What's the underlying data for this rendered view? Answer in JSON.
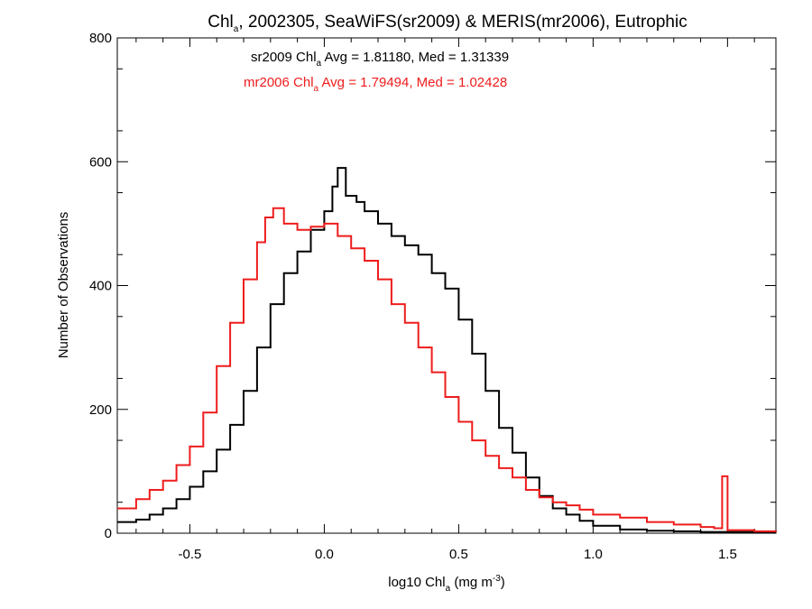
{
  "chart_data": {
    "type": "line",
    "title": {
      "pre": "Chl",
      "sub": "a",
      "post": ", 2002305, SeaWiFS(sr2009) & MERIS(mr2006), Eutrophic"
    },
    "xlabel": {
      "pre": "log10 Chl",
      "sub": "a",
      "mid": " (mg m",
      "sup": "-3",
      "post": ")"
    },
    "ylabel": "Number of Observations",
    "xlim": [
      -0.77,
      1.68
    ],
    "ylim": [
      0,
      800
    ],
    "x_ticks": [
      {
        "value": -0.5,
        "label": "-0.5"
      },
      {
        "value": 0.0,
        "label": "0.0"
      },
      {
        "value": 0.5,
        "label": "0.5"
      },
      {
        "value": 1.0,
        "label": "1.0"
      },
      {
        "value": 1.5,
        "label": "1.5"
      }
    ],
    "y_ticks": [
      {
        "value": 0,
        "label": "0"
      },
      {
        "value": 200,
        "label": "200"
      },
      {
        "value": 400,
        "label": "400"
      },
      {
        "value": 600,
        "label": "600"
      },
      {
        "value": 800,
        "label": "800"
      }
    ],
    "grid": false,
    "annotations": [
      {
        "color": "#000000",
        "pre": "sr2009 Chl",
        "sub": "a",
        "post": " Avg = 1.81180, Med = 1.31339"
      },
      {
        "color": "#ee1c1c",
        "pre": "mr2006 Chl",
        "sub": "a",
        "post": " Avg = 1.79494, Med = 1.02428"
      }
    ],
    "series": [
      {
        "color": "#000000",
        "style": "step",
        "points": [
          [
            -0.77,
            18
          ],
          [
            -0.7,
            22
          ],
          [
            -0.65,
            30
          ],
          [
            -0.6,
            40
          ],
          [
            -0.55,
            55
          ],
          [
            -0.5,
            75
          ],
          [
            -0.45,
            100
          ],
          [
            -0.4,
            135
          ],
          [
            -0.35,
            175
          ],
          [
            -0.3,
            230
          ],
          [
            -0.25,
            300
          ],
          [
            -0.2,
            370
          ],
          [
            -0.15,
            420
          ],
          [
            -0.1,
            455
          ],
          [
            -0.05,
            490
          ],
          [
            0.0,
            520
          ],
          [
            0.03,
            560
          ],
          [
            0.05,
            590
          ],
          [
            0.08,
            545
          ],
          [
            0.12,
            535
          ],
          [
            0.15,
            520
          ],
          [
            0.2,
            500
          ],
          [
            0.25,
            480
          ],
          [
            0.3,
            465
          ],
          [
            0.35,
            450
          ],
          [
            0.4,
            420
          ],
          [
            0.45,
            395
          ],
          [
            0.5,
            345
          ],
          [
            0.55,
            290
          ],
          [
            0.6,
            230
          ],
          [
            0.65,
            170
          ],
          [
            0.7,
            130
          ],
          [
            0.75,
            90
          ],
          [
            0.8,
            60
          ],
          [
            0.85,
            40
          ],
          [
            0.9,
            30
          ],
          [
            0.95,
            20
          ],
          [
            1.0,
            12
          ],
          [
            1.1,
            6
          ],
          [
            1.2,
            4
          ],
          [
            1.3,
            3
          ],
          [
            1.4,
            2
          ],
          [
            1.5,
            2
          ],
          [
            1.6,
            1
          ],
          [
            1.68,
            1
          ]
        ]
      },
      {
        "color": "#ee1c1c",
        "style": "step",
        "points": [
          [
            -0.77,
            40
          ],
          [
            -0.7,
            55
          ],
          [
            -0.65,
            70
          ],
          [
            -0.6,
            85
          ],
          [
            -0.55,
            110
          ],
          [
            -0.5,
            140
          ],
          [
            -0.45,
            195
          ],
          [
            -0.4,
            270
          ],
          [
            -0.35,
            340
          ],
          [
            -0.3,
            410
          ],
          [
            -0.25,
            470
          ],
          [
            -0.22,
            510
          ],
          [
            -0.19,
            525
          ],
          [
            -0.15,
            500
          ],
          [
            -0.1,
            490
          ],
          [
            -0.05,
            495
          ],
          [
            0.0,
            500
          ],
          [
            0.05,
            480
          ],
          [
            0.1,
            460
          ],
          [
            0.15,
            440
          ],
          [
            0.2,
            410
          ],
          [
            0.25,
            370
          ],
          [
            0.3,
            340
          ],
          [
            0.35,
            300
          ],
          [
            0.4,
            260
          ],
          [
            0.45,
            220
          ],
          [
            0.5,
            180
          ],
          [
            0.55,
            150
          ],
          [
            0.6,
            125
          ],
          [
            0.65,
            105
          ],
          [
            0.7,
            90
          ],
          [
            0.75,
            70
          ],
          [
            0.8,
            58
          ],
          [
            0.85,
            50
          ],
          [
            0.9,
            45
          ],
          [
            0.95,
            38
          ],
          [
            1.0,
            30
          ],
          [
            1.1,
            25
          ],
          [
            1.2,
            18
          ],
          [
            1.3,
            14
          ],
          [
            1.4,
            10
          ],
          [
            1.45,
            8
          ],
          [
            1.48,
            92
          ],
          [
            1.5,
            5
          ],
          [
            1.6,
            3
          ],
          [
            1.68,
            2
          ]
        ]
      }
    ]
  }
}
